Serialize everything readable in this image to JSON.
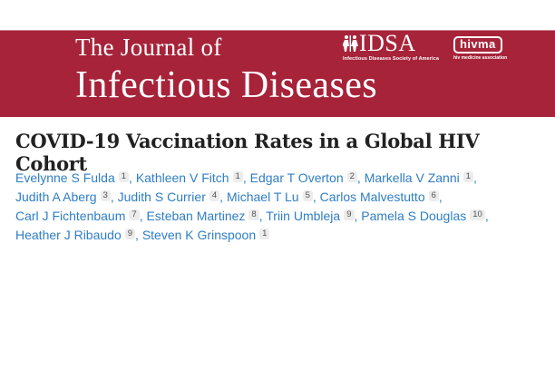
{
  "banner": {
    "background_color": "#A62339",
    "journal_name_line1": "The Journal of",
    "journal_name_line2": "Infectious Diseases",
    "idsa_logo": {
      "acronym": "IDSA",
      "tagline": "Infectious Diseases Society of America"
    },
    "hivma_logo": {
      "name": "hivma",
      "tagline": "hiv medicine association"
    }
  },
  "article": {
    "title": "COVID-19 Vaccination Rates in a Global HIV Cohort",
    "authors": [
      {
        "name": "Evelynne S Fulda",
        "affiliation": "1"
      },
      {
        "name": "Kathleen V Fitch",
        "affiliation": "1"
      },
      {
        "name": "Edgar T Overton",
        "affiliation": "2"
      },
      {
        "name": "Markella V Zanni",
        "affiliation": "1"
      },
      {
        "name": "Judith A Aberg",
        "affiliation": "3"
      },
      {
        "name": "Judith S Currier",
        "affiliation": "4"
      },
      {
        "name": "Michael T Lu",
        "affiliation": "5"
      },
      {
        "name": "Carlos Malvestutto",
        "affiliation": "6"
      },
      {
        "name": "Carl J Fichtenbaum",
        "affiliation": "7"
      },
      {
        "name": "Esteban Martinez",
        "affiliation": "8"
      },
      {
        "name": "Triin Umbleja",
        "affiliation": "9"
      },
      {
        "name": "Pamela S Douglas",
        "affiliation": "10"
      },
      {
        "name": "Heather J Ribaudo",
        "affiliation": "9"
      },
      {
        "name": "Steven K Grinspoon",
        "affiliation": "1"
      }
    ],
    "author_separator": ","
  },
  "colors": {
    "banner_red": "#A62339",
    "link_blue": "#2E7EC5",
    "badge_background": "#ECECEC",
    "badge_text": "#545454",
    "title_text": "#212121"
  }
}
